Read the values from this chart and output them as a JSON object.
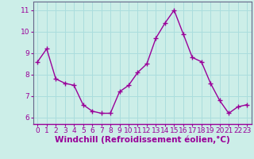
{
  "x": [
    0,
    1,
    2,
    3,
    4,
    5,
    6,
    7,
    8,
    9,
    10,
    11,
    12,
    13,
    14,
    15,
    16,
    17,
    18,
    19,
    20,
    21,
    22,
    23
  ],
  "y": [
    8.6,
    9.2,
    7.8,
    7.6,
    7.5,
    6.6,
    6.3,
    6.2,
    6.2,
    7.2,
    7.5,
    8.1,
    8.5,
    9.7,
    10.4,
    11.0,
    9.9,
    8.8,
    8.6,
    7.6,
    6.8,
    6.2,
    6.5,
    6.6
  ],
  "line_color": "#990099",
  "marker": "+",
  "marker_size": 4,
  "marker_lw": 1.0,
  "line_width": 1.0,
  "bg_color": "#cceee8",
  "grid_color": "#aadddd",
  "xlabel": "Windchill (Refroidissement éolien,°C)",
  "ylim": [
    5.7,
    11.4
  ],
  "xlim": [
    -0.5,
    23.5
  ],
  "yticks": [
    6,
    7,
    8,
    9,
    10,
    11
  ],
  "xticks": [
    0,
    1,
    2,
    3,
    4,
    5,
    6,
    7,
    8,
    9,
    10,
    11,
    12,
    13,
    14,
    15,
    16,
    17,
    18,
    19,
    20,
    21,
    22,
    23
  ],
  "tick_fontsize": 6.5,
  "xlabel_fontsize": 7.5,
  "axis_color": "#660066",
  "spine_color": "#666688"
}
